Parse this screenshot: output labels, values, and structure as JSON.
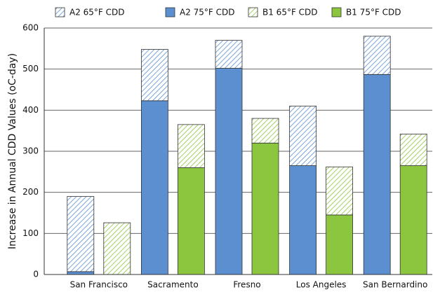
{
  "chart_data": {
    "type": "grouped-stacked-bar",
    "y_label": "Increase in Annual CDD Values (oC-day)",
    "categories": [
      "San Francisco",
      "Sacramento",
      "Fresno",
      "Los Angeles",
      "San Bernardino"
    ],
    "series": [
      {
        "name": "A2 65°F CDD",
        "stack": "A2",
        "color": "#5b8fd0",
        "hatch": true,
        "values": [
          183,
          125,
          68,
          145,
          93
        ]
      },
      {
        "name": "A2 75°F CDD",
        "stack": "A2",
        "color": "#5b8fd0",
        "hatch": false,
        "values": [
          7,
          423,
          502,
          265,
          487
        ]
      },
      {
        "name": "B1 65°F CDD",
        "stack": "B1",
        "color": "#8cc63f",
        "hatch": true,
        "values": [
          126,
          105,
          60,
          117,
          77
        ]
      },
      {
        "name": "B1 75°F CDD",
        "stack": "B1",
        "color": "#8cc63f",
        "hatch": false,
        "values": [
          0,
          260,
          320,
          145,
          265
        ]
      }
    ],
    "ylim": [
      0,
      600
    ],
    "yticks": [
      0,
      100,
      200,
      300,
      400,
      500,
      600
    ],
    "grid": true
  }
}
